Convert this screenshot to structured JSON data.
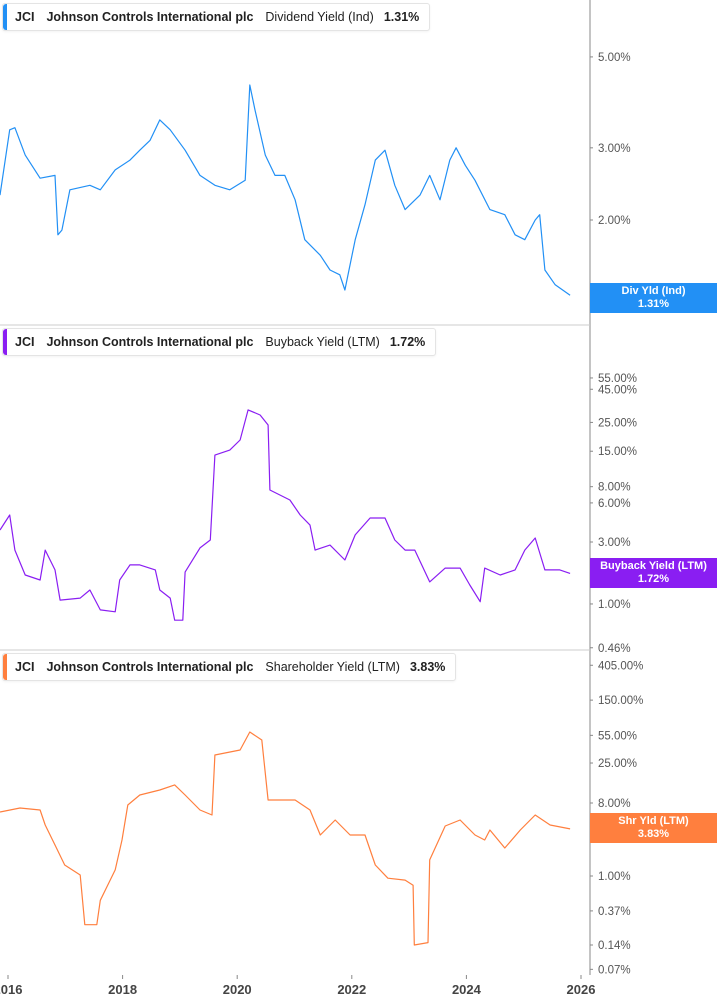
{
  "chart_data": [
    {
      "type": "line",
      "ticker": "JCI",
      "company": "Johnson Controls International plc",
      "metric": "Dividend Yield (Ind)",
      "last_value": "1.31%",
      "tag_label": "Div Yld (Ind)",
      "color": "#2290f5",
      "yscale": "log",
      "yticks": [
        "5.00%",
        "3.00%",
        "2.00%"
      ],
      "ytick_values": [
        5,
        3,
        2
      ],
      "series": [
        {
          "x": [
            2015.86,
            2016.03,
            2016.12,
            2016.3,
            2016.56,
            2016.82,
            2016.87,
            2016.94,
            2017.08,
            2017.43,
            2017.61,
            2017.87,
            2018.13,
            2018.3,
            2018.48,
            2018.65,
            2018.83,
            2019.09,
            2019.35,
            2019.61,
            2019.87,
            2020.14,
            2020.22,
            2020.31,
            2020.49,
            2020.66,
            2020.83,
            2021.01,
            2021.18,
            2021.45,
            2021.62,
            2021.79,
            2021.88,
            2022.06,
            2022.23,
            2022.41,
            2022.58,
            2022.75,
            2022.93,
            2023.19,
            2023.36,
            2023.54,
            2023.71,
            2023.82,
            2023.98,
            2024.15,
            2024.41,
            2024.67,
            2024.85,
            2025.02,
            2025.2,
            2025.28,
            2025.37,
            2025.55,
            2025.81
          ],
          "y": [
            2.3,
            3.32,
            3.36,
            2.88,
            2.53,
            2.57,
            1.84,
            1.89,
            2.37,
            2.43,
            2.37,
            2.65,
            2.8,
            2.96,
            3.13,
            3.51,
            3.32,
            2.96,
            2.57,
            2.43,
            2.37,
            2.5,
            4.27,
            3.71,
            2.88,
            2.57,
            2.57,
            2.24,
            1.79,
            1.64,
            1.51,
            1.47,
            1.35,
            1.79,
            2.18,
            2.8,
            2.96,
            2.43,
            2.12,
            2.3,
            2.57,
            2.24,
            2.8,
            3.0,
            2.72,
            2.5,
            2.12,
            2.06,
            1.84,
            1.79,
            2.0,
            2.06,
            1.51,
            1.39,
            1.31
          ]
        }
      ]
    },
    {
      "type": "line",
      "ticker": "JCI",
      "company": "Johnson Controls International plc",
      "metric": "Buyback Yield (LTM)",
      "last_value": "1.72%",
      "tag_label": "Buyback Yield (LTM)",
      "color": "#8a1ef2",
      "yscale": "log",
      "yticks": [
        "55.00%",
        "45.00%",
        "25.00%",
        "15.00%",
        "8.00%",
        "6.00%",
        "3.00%",
        "1.00%",
        "0.46%"
      ],
      "ytick_values": [
        55,
        45,
        25,
        15,
        8,
        6,
        3,
        1,
        0.46
      ],
      "series": [
        {
          "x": [
            2015.86,
            2016.03,
            2016.12,
            2016.3,
            2016.56,
            2016.65,
            2016.82,
            2016.91,
            2017.26,
            2017.43,
            2017.61,
            2017.87,
            2017.95,
            2018.13,
            2018.3,
            2018.57,
            2018.65,
            2018.83,
            2018.91,
            2019.05,
            2019.09,
            2019.35,
            2019.53,
            2019.61,
            2019.87,
            2020.05,
            2020.19,
            2020.4,
            2020.54,
            2020.57,
            2020.92,
            2021.1,
            2021.27,
            2021.36,
            2021.62,
            2021.88,
            2022.06,
            2022.32,
            2022.58,
            2022.75,
            2022.93,
            2023.1,
            2023.36,
            2023.63,
            2023.89,
            2024.06,
            2024.24,
            2024.32,
            2024.59,
            2024.85,
            2025.02,
            2025.2,
            2025.37,
            2025.63,
            2025.81
          ],
          "y": [
            3.71,
            4.84,
            2.6,
            1.67,
            1.53,
            2.6,
            1.83,
            1.07,
            1.11,
            1.28,
            0.9,
            0.87,
            1.53,
            2.0,
            2.0,
            1.83,
            1.28,
            1.11,
            0.75,
            0.75,
            1.76,
            2.7,
            3.11,
            14.0,
            15.3,
            18.3,
            31.2,
            28.5,
            23.9,
            7.54,
            6.32,
            4.84,
            4.05,
            2.6,
            2.84,
            2.18,
            3.4,
            4.59,
            4.59,
            3.11,
            2.6,
            2.6,
            1.48,
            1.89,
            1.89,
            1.4,
            1.04,
            1.89,
            1.67,
            1.83,
            2.6,
            3.22,
            1.83,
            1.83,
            1.72
          ]
        }
      ]
    },
    {
      "type": "line",
      "ticker": "JCI",
      "company": "Johnson Controls International plc",
      "metric": "Shareholder Yield (LTM)",
      "last_value": "3.83%",
      "tag_label": "Shr Yld (LTM)",
      "color": "#ff7f3e",
      "yscale": "log",
      "yticks": [
        "405.00%",
        "150.00%",
        "55.00%",
        "25.00%",
        "8.00%",
        "3.00%",
        "1.00%",
        "0.37%",
        "0.14%",
        "0.07%"
      ],
      "ytick_values": [
        405,
        150,
        55,
        25,
        8,
        3,
        1,
        0.37,
        0.14,
        0.07
      ],
      "series": [
        {
          "x": [
            2015.86,
            2016.21,
            2016.56,
            2016.65,
            2016.82,
            2016.99,
            2017.26,
            2017.34,
            2017.55,
            2017.61,
            2017.87,
            2017.99,
            2018.09,
            2018.3,
            2018.65,
            2018.91,
            2019.09,
            2019.35,
            2019.56,
            2019.61,
            2020.05,
            2020.22,
            2020.43,
            2020.54,
            2021.01,
            2021.27,
            2021.45,
            2021.71,
            2021.97,
            2022.23,
            2022.41,
            2022.63,
            2022.93,
            2023.07,
            2023.09,
            2023.33,
            2023.36,
            2023.63,
            2023.89,
            2024.15,
            2024.32,
            2024.41,
            2024.67,
            2024.94,
            2025.2,
            2025.46,
            2025.81
          ],
          "y": [
            6.19,
            6.94,
            6.56,
            4.28,
            2.42,
            1.37,
            1.03,
            0.25,
            0.25,
            0.5,
            1.19,
            2.79,
            7.56,
            10.05,
            11.6,
            13.4,
            10.05,
            6.56,
            5.69,
            31.4,
            36.2,
            60.5,
            48.2,
            8.72,
            8.72,
            6.56,
            3.22,
            4.93,
            3.22,
            3.22,
            1.37,
            0.94,
            0.89,
            0.77,
            0.14,
            0.15,
            1.58,
            4.16,
            4.93,
            3.22,
            2.79,
            3.71,
            2.22,
            3.71,
            5.69,
            4.28,
            3.83
          ]
        }
      ]
    }
  ],
  "x_axis": {
    "ticks": [
      "2016",
      "2018",
      "2020",
      "2022",
      "2024",
      "2026"
    ],
    "tick_values": [
      2016,
      2018,
      2020,
      2022,
      2024,
      2026
    ]
  }
}
